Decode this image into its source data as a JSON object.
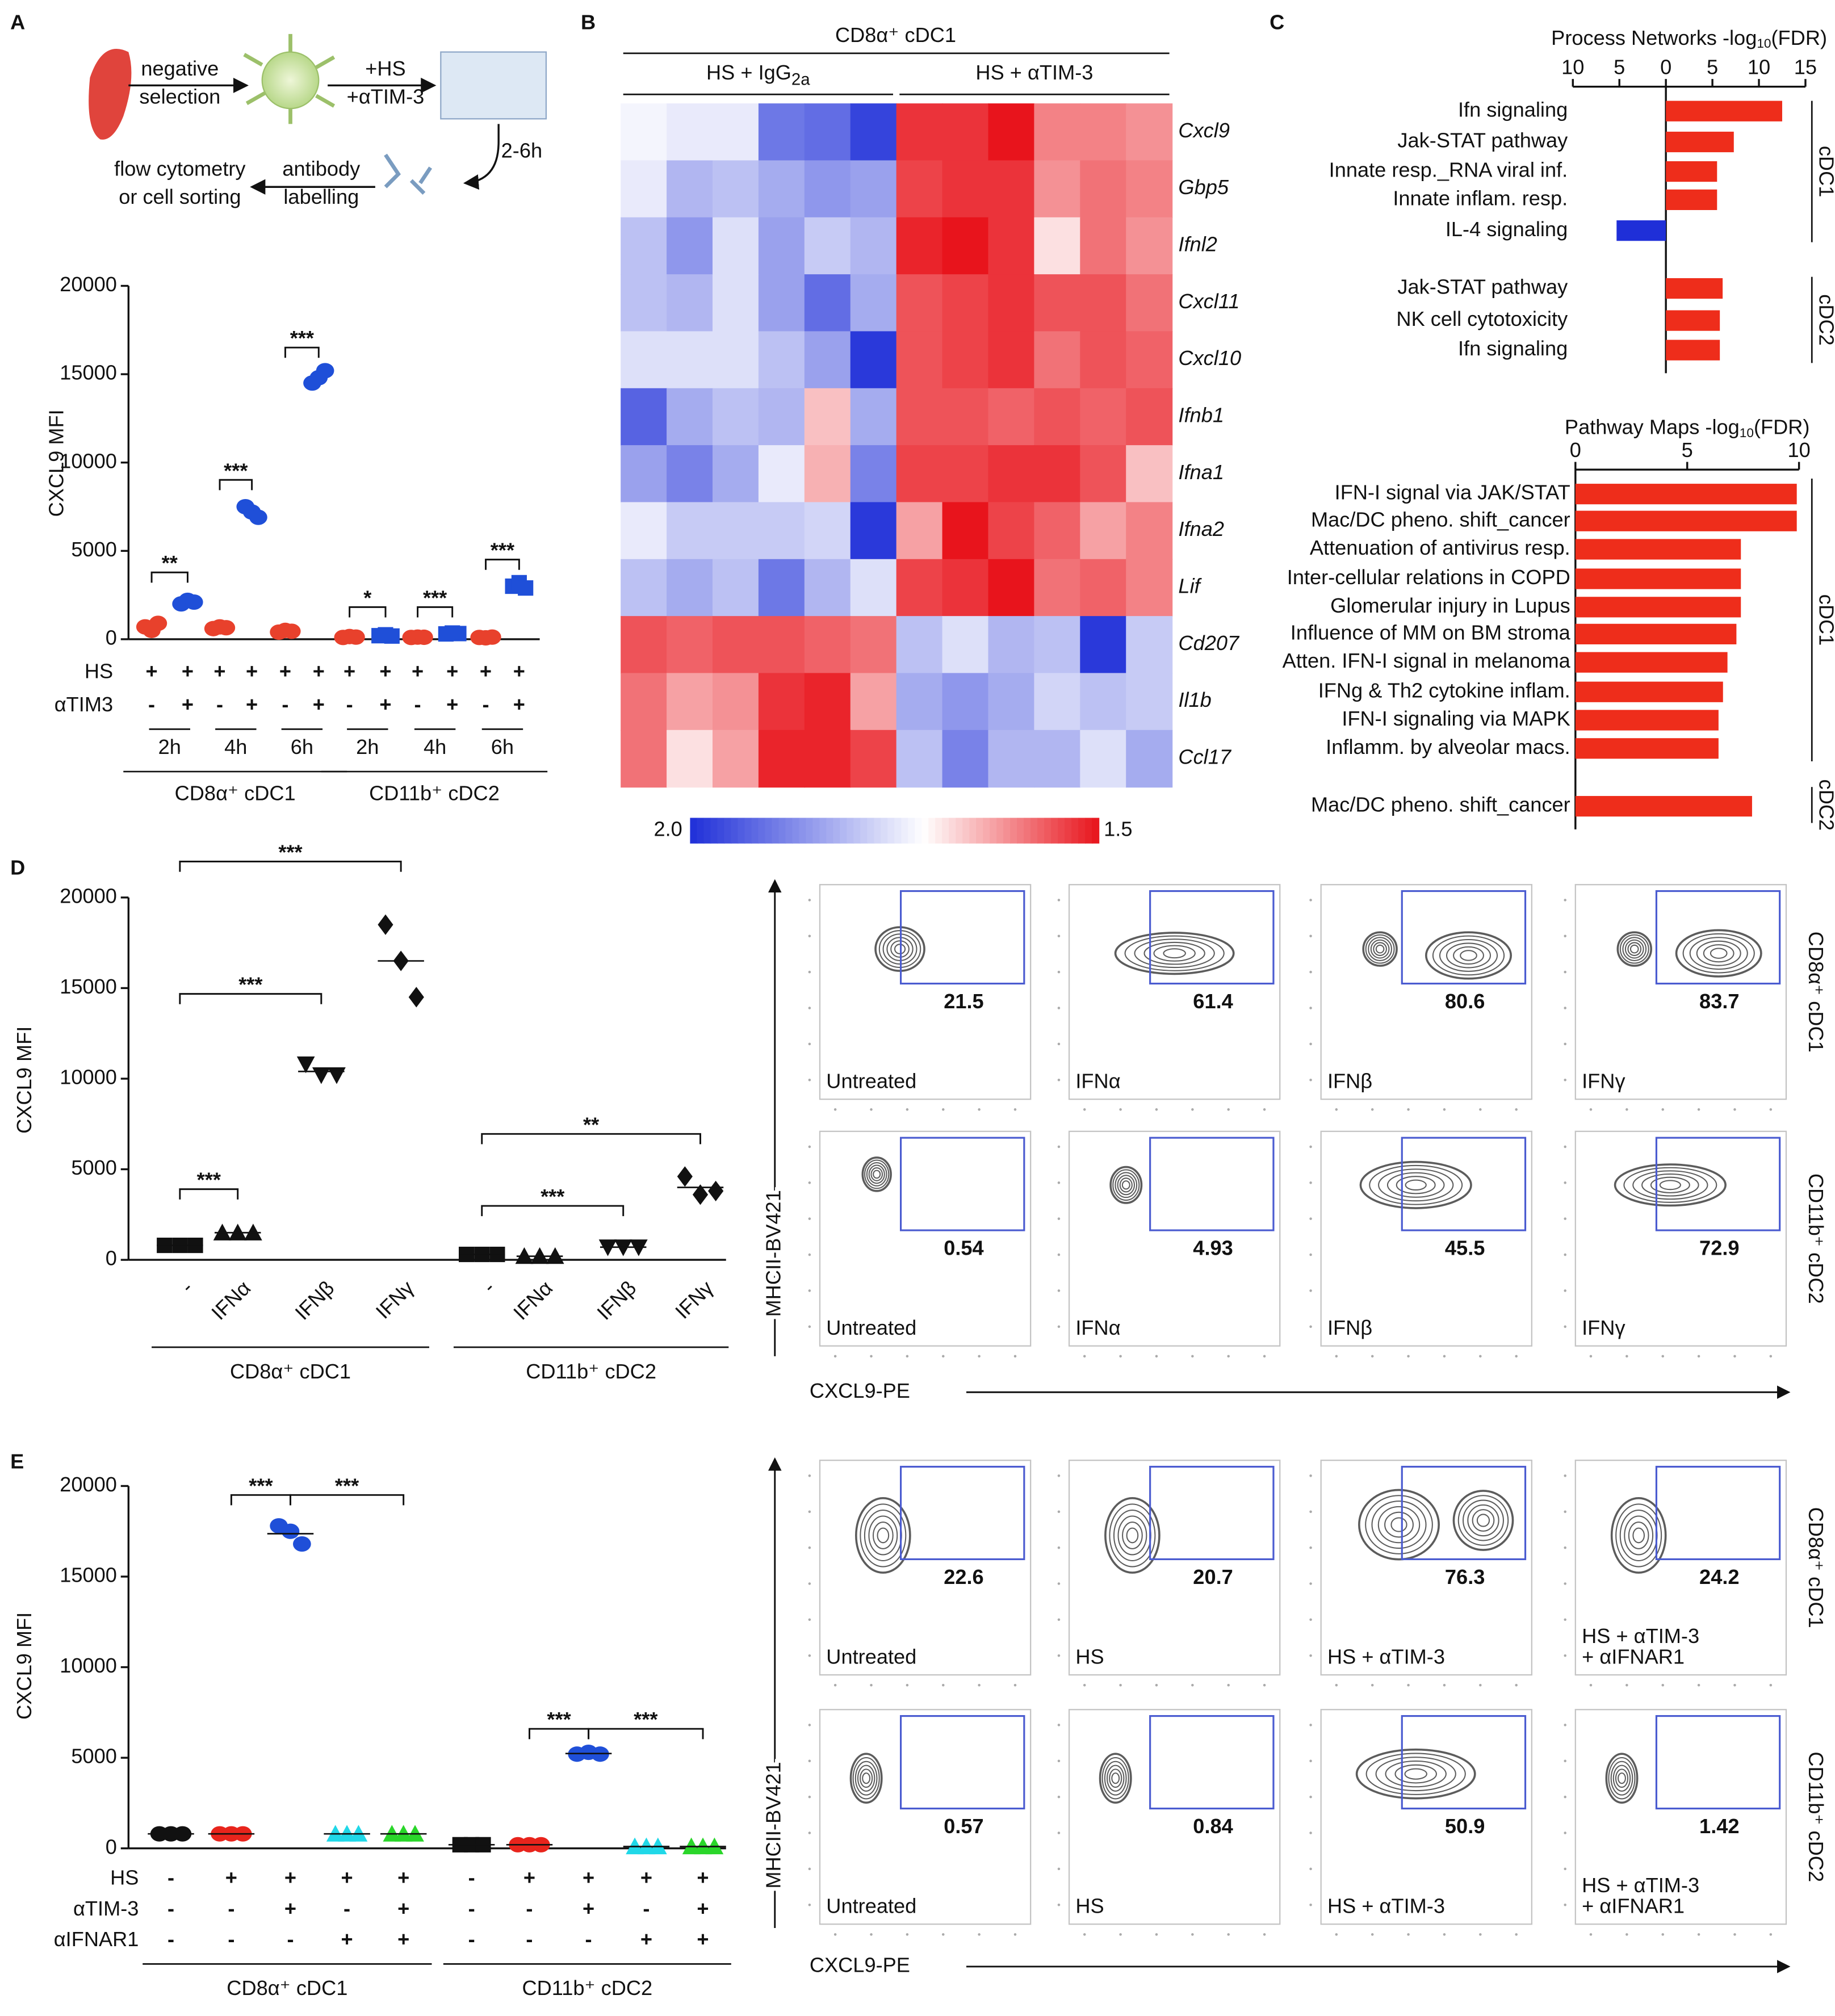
{
  "chart_data": [
    {
      "type": "dot",
      "panel": "A",
      "ylabel": "CXCL9 MFI",
      "ylim": [
        0,
        20000
      ],
      "yticks": [
        0,
        5000,
        10000,
        15000,
        20000
      ],
      "groups": [
        {
          "name": "CD8α⁺ cDC1",
          "times": [
            "2h",
            "4h",
            "6h"
          ],
          "conditions": [
            {
              "color": "#e8412c",
              "marker": "circle",
              "values": [
                700,
                500,
                900
              ]
            },
            {
              "color": "#1f4fd8",
              "marker": "circle",
              "values": [
                2000,
                2200,
                2100
              ]
            },
            {
              "color": "#e8412c",
              "marker": "circle",
              "values": [
                600,
                700,
                650
              ]
            },
            {
              "color": "#1f4fd8",
              "marker": "circle",
              "values": [
                7500,
                7200,
                6900
              ]
            },
            {
              "color": "#e8412c",
              "marker": "circle",
              "values": [
                400,
                500,
                450
              ]
            },
            {
              "color": "#1f4fd8",
              "marker": "circle",
              "values": [
                14500,
                14800,
                15200
              ]
            }
          ]
        },
        {
          "name": "CD11b⁺ cDC2",
          "times": [
            "2h",
            "4h",
            "6h"
          ],
          "conditions": [
            {
              "color": "#e8412c",
              "marker": "circle",
              "values": [
                100,
                150,
                120
              ]
            },
            {
              "color": "#1f4fd8",
              "marker": "square",
              "values": [
                200,
                250,
                180
              ]
            },
            {
              "color": "#e8412c",
              "marker": "circle",
              "values": [
                100,
                120,
                110
              ]
            },
            {
              "color": "#1f4fd8",
              "marker": "square",
              "values": [
                300,
                350,
                320
              ]
            },
            {
              "color": "#e8412c",
              "marker": "circle",
              "values": [
                100,
                80,
                120
              ]
            },
            {
              "color": "#1f4fd8",
              "marker": "square",
              "values": [
                3000,
                3200,
                2900
              ]
            }
          ]
        }
      ],
      "rows": [
        {
          "label": "HS",
          "values": [
            "+",
            "+",
            "+",
            "+",
            "+",
            "+",
            "+",
            "+",
            "+",
            "+",
            "+",
            "+"
          ]
        },
        {
          "label": "αTIM3",
          "values": [
            "-",
            "+",
            "-",
            "+",
            "-",
            "+",
            "-",
            "+",
            "-",
            "+",
            "-",
            "+"
          ]
        }
      ],
      "significance": [
        "**",
        "***",
        "***",
        "*",
        "***",
        "***"
      ]
    },
    {
      "type": "heatmap",
      "panel": "B",
      "header": "CD8α⁺ cDC1",
      "column_groups": [
        [
          "HS + IgG",
          "2a"
        ],
        [
          "HS + αTIM-3"
        ]
      ],
      "genes": [
        "Cxcl9",
        "Gbp5",
        "Ifnl2",
        "Cxcl11",
        "Cxcl10",
        "Ifnb1",
        "Ifna1",
        "Ifna2",
        "Lif",
        "Cd207",
        "Il1b",
        "Ccl17"
      ],
      "values": [
        [
          -0.1,
          -0.2,
          -0.2,
          -1.3,
          -1.4,
          -1.8,
          1.3,
          1.3,
          1.5,
          0.8,
          0.8,
          0.7
        ],
        [
          -0.2,
          -0.7,
          -0.6,
          -0.8,
          -1.0,
          -0.9,
          1.2,
          1.3,
          1.3,
          0.7,
          0.9,
          0.8
        ],
        [
          -0.6,
          -1.0,
          -0.3,
          -0.9,
          -0.5,
          -0.7,
          1.4,
          1.5,
          1.3,
          0.2,
          0.9,
          0.7
        ],
        [
          -0.6,
          -0.7,
          -0.3,
          -0.9,
          -1.4,
          -0.8,
          1.1,
          1.2,
          1.3,
          1.1,
          1.1,
          0.9
        ],
        [
          -0.3,
          -0.3,
          -0.3,
          -0.6,
          -0.9,
          -1.9,
          1.1,
          1.2,
          1.3,
          0.9,
          1.1,
          1.0
        ],
        [
          -1.5,
          -0.8,
          -0.6,
          -0.7,
          0.4,
          -0.8,
          1.1,
          1.1,
          1.0,
          1.1,
          1.0,
          1.1
        ],
        [
          -0.9,
          -1.2,
          -0.8,
          -0.2,
          0.5,
          -1.2,
          1.2,
          1.2,
          1.3,
          1.3,
          1.1,
          0.4
        ],
        [
          -0.2,
          -0.5,
          -0.5,
          -0.5,
          -0.4,
          -1.9,
          0.6,
          1.5,
          1.2,
          1.0,
          0.6,
          0.8
        ],
        [
          -0.6,
          -0.8,
          -0.6,
          -1.3,
          -0.7,
          -0.3,
          1.2,
          1.3,
          1.5,
          0.9,
          1.0,
          0.8
        ],
        [
          1.1,
          1.0,
          1.1,
          1.1,
          1.0,
          0.9,
          -0.6,
          -0.3,
          -0.7,
          -0.6,
          -1.9,
          -0.5
        ],
        [
          0.9,
          0.6,
          0.7,
          1.3,
          1.4,
          0.6,
          -0.8,
          -1.0,
          -0.8,
          -0.4,
          -0.6,
          -0.5
        ],
        [
          0.9,
          0.2,
          0.6,
          1.4,
          1.4,
          1.2,
          -0.6,
          -1.2,
          -0.7,
          -0.7,
          -0.3,
          -0.8
        ]
      ],
      "clim": [
        -2,
        1.5
      ],
      "cticks": [
        {
          "value": -2,
          "label": "2.0"
        },
        1.5
      ],
      "low_color": "#1f2fd8",
      "high_color": "#e8141c"
    },
    {
      "type": "hbar",
      "panel": "C",
      "xlabel": [
        "Process Networks -log",
        "10",
        "(FDR)"
      ],
      "xlim": [
        -10,
        15
      ],
      "xticks": [
        {
          "value": -10,
          "label": "10"
        },
        {
          "value": -5,
          "label": "5"
        },
        0,
        5,
        10,
        15
      ],
      "groups": [
        {
          "name": "cDC1",
          "categories": [
            "Ifn signaling",
            "Jak-STAT pathway",
            "Innate resp._RNA viral inf.",
            "Innate inflam. resp.",
            "IL-4 signaling"
          ],
          "values": [
            12.5,
            7.3,
            5.5,
            5.5,
            -5.3
          ],
          "colors": [
            "#ee2d1b",
            "#ee2d1b",
            "#ee2d1b",
            "#ee2d1b",
            "#1f2fd8"
          ]
        },
        {
          "name": "cDC2",
          "categories": [
            "Jak-STAT pathway",
            "NK cell cytotoxicity",
            "Ifn signaling"
          ],
          "values": [
            6.1,
            5.8,
            5.8
          ],
          "colors": [
            "#ee2d1b",
            "#ee2d1b",
            "#ee2d1b"
          ]
        }
      ]
    },
    {
      "type": "hbar",
      "xlabel": [
        "Pathway Maps -log",
        "10",
        "(FDR)"
      ],
      "xlim": [
        0,
        10
      ],
      "xticks": [
        0,
        5,
        10
      ],
      "groups": [
        {
          "name": "cDC1",
          "categories": [
            "IFN-I signal via JAK/STAT",
            "Mac/DC pheno. shift_cancer",
            "Attenuation of antivirus resp.",
            "Inter-cellular relations in COPD",
            "Glomerular injury in Lupus",
            "Influence of MM on BM stroma",
            "Atten. IFN-I signal in melanoma",
            "IFNg & Th2 cytokine inflam.",
            "IFN-I signaling via MAPK",
            "Inflamm. by alveolar macs."
          ],
          "values": [
            9.9,
            9.9,
            7.4,
            7.4,
            7.4,
            7.2,
            6.8,
            6.6,
            6.4,
            6.4
          ],
          "colors": [
            "#ee2d1b",
            "#ee2d1b",
            "#ee2d1b",
            "#ee2d1b",
            "#ee2d1b",
            "#ee2d1b",
            "#ee2d1b",
            "#ee2d1b",
            "#ee2d1b",
            "#ee2d1b"
          ]
        },
        {
          "name": "cDC2",
          "categories": [
            "Mac/DC pheno. shift_cancer"
          ],
          "values": [
            7.9
          ],
          "colors": [
            "#ee2d1b"
          ]
        }
      ]
    },
    {
      "type": "dot",
      "panel": "D",
      "ylabel": "CXCL9 MFI",
      "ylim": [
        0,
        20000
      ],
      "yticks": [
        0,
        5000,
        10000,
        15000,
        20000
      ],
      "mean_line": true,
      "groups": [
        {
          "name": "CD8α⁺ cDC1",
          "categories": [
            "-",
            "IFNα",
            "IFNβ",
            "IFNγ"
          ],
          "conditions": [
            {
              "color": "#111111",
              "marker": "square",
              "values": [
                800,
                800,
                800
              ]
            },
            {
              "color": "#111111",
              "marker": "triangle",
              "values": [
                1500,
                1500,
                1500
              ]
            },
            {
              "color": "#111111",
              "marker": "triangle-down",
              "values": [
                10800,
                10200,
                10200
              ]
            },
            {
              "color": "#111111",
              "marker": "diamond",
              "values": [
                18500,
                16500,
                14500
              ]
            }
          ]
        },
        {
          "name": "CD11b⁺ cDC2",
          "categories": [
            "-",
            "IFNα",
            "IFNβ",
            "IFNγ"
          ],
          "conditions": [
            {
              "color": "#111111",
              "marker": "square",
              "values": [
                300,
                300,
                300
              ]
            },
            {
              "color": "#111111",
              "marker": "triangle",
              "values": [
                200,
                200,
                200
              ]
            },
            {
              "color": "#111111",
              "marker": "triangle-down",
              "values": [
                700,
                700,
                700
              ]
            },
            {
              "color": "#111111",
              "marker": "diamond",
              "values": [
                4600,
                3600,
                3800
              ]
            }
          ]
        }
      ],
      "significance": [
        "***",
        "***",
        "***",
        "**",
        "***"
      ]
    },
    {
      "type": "dot",
      "panel": "E",
      "ylabel": "CXCL9 MFI",
      "ylim": [
        0,
        20000
      ],
      "yticks": [
        0,
        5000,
        10000,
        15000,
        20000
      ],
      "mean_line": true,
      "groups": [
        {
          "name": "CD8α⁺ cDC1",
          "conditions": [
            {
              "color": "#111111",
              "marker": "circle",
              "values": [
                800,
                800,
                800
              ]
            },
            {
              "color": "#e8241c",
              "marker": "circle",
              "values": [
                800,
                800,
                800
              ]
            },
            {
              "color": "#1f4fd8",
              "marker": "circle",
              "values": [
                17800,
                17500,
                16800
              ]
            },
            {
              "color": "#20d8e8",
              "marker": "triangle",
              "values": [
                800,
                800,
                800
              ]
            },
            {
              "color": "#2ad62a",
              "marker": "triangle",
              "values": [
                800,
                800,
                800
              ]
            }
          ]
        },
        {
          "name": "CD11b⁺ cDC2",
          "conditions": [
            {
              "color": "#111111",
              "marker": "square",
              "values": [
                200,
                200,
                200
              ]
            },
            {
              "color": "#e8241c",
              "marker": "circle",
              "values": [
                200,
                200,
                200
              ]
            },
            {
              "color": "#1f4fd8",
              "marker": "circle",
              "values": [
                5200,
                5300,
                5200
              ]
            },
            {
              "color": "#20d8e8",
              "marker": "triangle",
              "values": [
                100,
                100,
                100
              ]
            },
            {
              "color": "#2ad62a",
              "marker": "triangle",
              "values": [
                100,
                100,
                100
              ]
            }
          ]
        }
      ],
      "rows": [
        {
          "label": "HS",
          "values": [
            "-",
            "+",
            "+",
            "+",
            "+",
            "-",
            "+",
            "+",
            "+",
            "+"
          ]
        },
        {
          "label": "αTIM-3",
          "values": [
            "-",
            "-",
            "+",
            "-",
            "+",
            "-",
            "-",
            "+",
            "-",
            "+"
          ]
        },
        {
          "label": "αIFNAR1",
          "values": [
            "-",
            "-",
            "-",
            "+",
            "+",
            "-",
            "-",
            "-",
            "+",
            "+"
          ]
        }
      ],
      "significance": [
        "***",
        "***",
        "***",
        "***"
      ]
    }
  ],
  "flow": [
    {
      "ylabel": "MHCII-BV421",
      "xlabel": "CXCL9-PE",
      "rows": [
        {
          "label": "CD8α⁺ cDC1",
          "plots": [
            {
              "condition": [
                "Untreated"
              ],
              "percent": 21.5
            },
            {
              "condition": [
                "IFNα"
              ],
              "percent": 61.4
            },
            {
              "condition": [
                "IFNβ"
              ],
              "percent": 80.6
            },
            {
              "condition": [
                "IFNγ"
              ],
              "percent": 83.7
            }
          ]
        },
        {
          "label": "CD11b⁺ cDC2",
          "plots": [
            {
              "condition": [
                "Untreated"
              ],
              "percent": 0.54
            },
            {
              "condition": [
                "IFNα"
              ],
              "percent": 4.93
            },
            {
              "condition": [
                "IFNβ"
              ],
              "percent": 45.5
            },
            {
              "condition": [
                "IFNγ"
              ],
              "percent": 72.9
            }
          ]
        }
      ]
    },
    {
      "ylabel": "MHCII-BV421",
      "xlabel": "CXCL9-PE",
      "rows": [
        {
          "label": "CD8α⁺ cDC1",
          "plots": [
            {
              "condition": [
                "Untreated"
              ],
              "percent": 22.6
            },
            {
              "condition": [
                "HS"
              ],
              "percent": 20.7
            },
            {
              "condition": [
                "HS + αTIM-3"
              ],
              "percent": 76.3
            },
            {
              "condition": [
                "HS + αTIM-3",
                "+ αIFNAR1"
              ],
              "percent": 24.2
            }
          ]
        },
        {
          "label": "CD11b⁺ cDC2",
          "plots": [
            {
              "condition": [
                "Untreated"
              ],
              "percent": 0.57
            },
            {
              "condition": [
                "HS"
              ],
              "percent": 0.84
            },
            {
              "condition": [
                "HS + αTIM-3"
              ],
              "percent": 50.9
            },
            {
              "condition": [
                "HS + αTIM-3",
                "+ αIFNAR1"
              ],
              "percent": 1.42
            }
          ]
        }
      ]
    }
  ],
  "schematic": {
    "selection": [
      "negative",
      "selection"
    ],
    "treatment": [
      "+HS",
      "+αTIM-3"
    ],
    "time": "2-6h",
    "labelling": [
      "antibody",
      "labelling"
    ],
    "readout": [
      "flow cytometry",
      "or cell sorting"
    ]
  }
}
